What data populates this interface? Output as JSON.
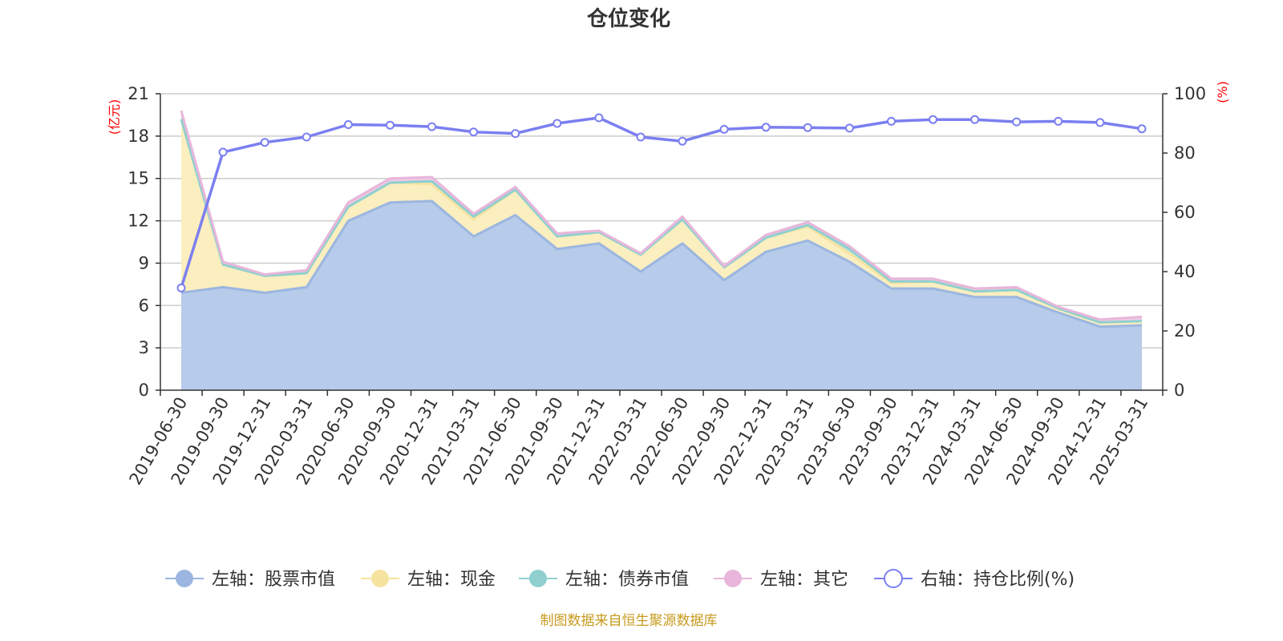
{
  "chart_data": {
    "type": "area",
    "title": "仓位变化",
    "left_axis": {
      "unit": "(亿元)",
      "ylim": [
        0,
        21
      ],
      "ticks": [
        0,
        3,
        6,
        9,
        12,
        15,
        18,
        21
      ]
    },
    "right_axis": {
      "unit": "(%)",
      "ylim": [
        0,
        100
      ],
      "ticks": [
        0,
        20,
        40,
        60,
        80,
        100
      ]
    },
    "categories": [
      "2019-06-30",
      "2019-09-30",
      "2019-12-31",
      "2020-03-31",
      "2020-06-30",
      "2020-09-30",
      "2020-12-31",
      "2021-03-31",
      "2021-06-30",
      "2021-09-30",
      "2021-12-31",
      "2022-03-31",
      "2022-06-30",
      "2022-09-30",
      "2022-12-31",
      "2023-03-31",
      "2023-06-30",
      "2023-09-30",
      "2023-12-31",
      "2024-03-31",
      "2024-06-30",
      "2024-09-30",
      "2024-12-31",
      "2025-03-31"
    ],
    "series": [
      {
        "name": "左轴：股票市值",
        "axis": "left",
        "stack": true,
        "color": "#9bb6e0",
        "fill": "#b7cbea",
        "values": [
          6.9,
          7.3,
          6.9,
          7.3,
          12.0,
          13.3,
          13.4,
          10.9,
          12.4,
          10.0,
          10.4,
          8.4,
          10.4,
          7.8,
          9.8,
          10.6,
          9.1,
          7.2,
          7.2,
          6.6,
          6.6,
          5.5,
          4.5,
          4.6
        ]
      },
      {
        "name": "左轴：现金",
        "axis": "left",
        "stack": true,
        "color": "#f6e3a0",
        "fill": "#fbeebf",
        "values": [
          12.3,
          1.6,
          1.2,
          1.0,
          1.0,
          1.4,
          1.2,
          1.2,
          1.8,
          0.9,
          0.8,
          1.2,
          1.7,
          0.9,
          1.0,
          1.0,
          0.6,
          0.4,
          0.5,
          0.4,
          0.5,
          0.3,
          0.3,
          0.3
        ]
      },
      {
        "name": "左轴：债券市值",
        "axis": "left",
        "stack": true,
        "color": "#8fd0cf",
        "fill": "#b6e2e1",
        "values": [
          0,
          0,
          0,
          0,
          0,
          0,
          0.2,
          0.2,
          0,
          0,
          0,
          0,
          0,
          0,
          0,
          0.1,
          0.3,
          0.1,
          0,
          0,
          0,
          0,
          0,
          0
        ]
      },
      {
        "name": "左轴：其它",
        "axis": "left",
        "stack": true,
        "color": "#e8b6da",
        "fill": "#efc9e6",
        "values": [
          0.6,
          0.2,
          0.1,
          0.2,
          0.3,
          0.3,
          0.3,
          0.2,
          0.2,
          0.2,
          0.1,
          0.1,
          0.2,
          0.1,
          0.2,
          0.2,
          0.2,
          0.2,
          0.2,
          0.2,
          0.2,
          0.1,
          0.2,
          0.3
        ]
      },
      {
        "name": "右轴：持仓比例(%)",
        "axis": "right",
        "type": "line",
        "color": "#7b7ff0",
        "values": [
          34.5,
          80.3,
          83.6,
          85.4,
          89.6,
          89.4,
          88.9,
          87.1,
          86.6,
          90.0,
          91.9,
          85.4,
          84.0,
          88.0,
          88.7,
          88.6,
          88.4,
          90.7,
          91.3,
          91.3,
          90.5,
          90.7,
          90.3,
          88.2
        ]
      }
    ],
    "grid": true,
    "legend": "bottom"
  },
  "source_text": "制图数据来自恒生聚源数据库"
}
